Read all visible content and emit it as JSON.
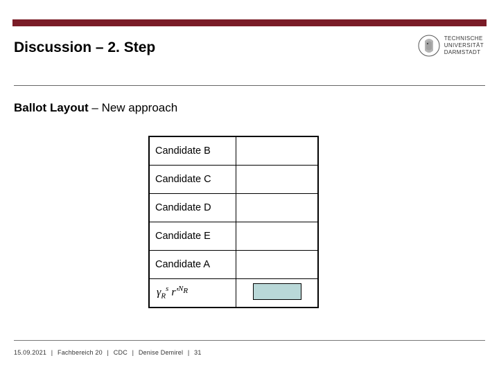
{
  "colors": {
    "brand_bar": "#7a1c27",
    "code_box_fill": "#b9d8d8",
    "underline": "#666666",
    "footer_line": "#777777",
    "text": "#000000"
  },
  "header": {
    "title": "Discussion – 2. Step",
    "logo": {
      "line1": "TECHNISCHE",
      "line2": "UNIVERSITÄT",
      "line3": "DARMSTADT"
    }
  },
  "subtitle": {
    "bold": "Ballot Layout",
    "rest": " – New approach"
  },
  "ballot": {
    "rows": [
      {
        "label": "Candidate B"
      },
      {
        "label": "Candidate C"
      },
      {
        "label": "Candidate D"
      },
      {
        "label": "Candidate E"
      },
      {
        "label": "Candidate A"
      }
    ],
    "formula_html": "γ<sub>R</sub><sup>s</sup>&nbsp;r'<sup>N<sub>R</sub></sup>"
  },
  "footer": {
    "date": "15.09.2021",
    "dept": "Fachbereich 20",
    "group": "CDC",
    "author": "Denise Demirel",
    "page": "31"
  }
}
